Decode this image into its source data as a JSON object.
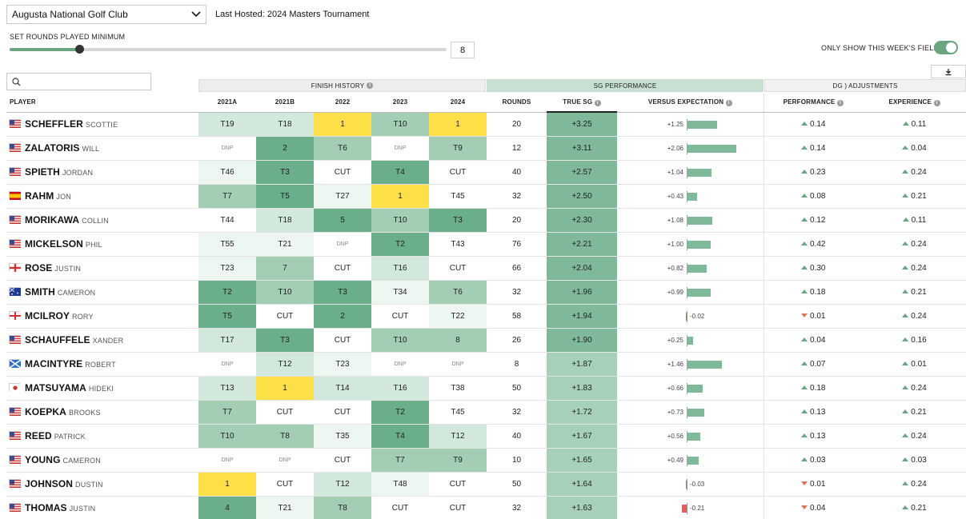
{
  "controls": {
    "course_select": "Augusta National Golf Club",
    "last_hosted_label": "Last Hosted:",
    "last_hosted_value": "2024 Masters Tournament",
    "rounds_min_label": "SET ROUNDS PLAYED MINIMUM",
    "rounds_min_value": "8",
    "rounds_min_fraction": 0.16,
    "field_toggle_label": "ONLY SHOW THIS WEEK'S FIELD",
    "field_toggle_on": true,
    "search_placeholder": ""
  },
  "group_headers": {
    "finish_history": "FINISH HISTORY",
    "sg_performance": "SG PERFORMANCE",
    "dg_adjustments": "DG ) ADJUSTMENTS"
  },
  "columns": {
    "player": "PLAYER",
    "y2021a": "2021A",
    "y2021b": "2021B",
    "y2022": "2022",
    "y2023": "2023",
    "y2024": "2024",
    "rounds": "ROUNDS",
    "true_sg": "TRUE SG",
    "versus_expectation": "VERSUS EXPECTATION",
    "performance": "PERFORMANCE",
    "experience": "EXPERIENCE"
  },
  "colors": {
    "win_yellow": "#fde047",
    "dark_green": "#6aae8a",
    "mid_green": "#a3ceb4",
    "light_green": "#d3e8dc",
    "pale_green": "#eef6f1",
    "true_sg_bg": "#7fb99a",
    "true_sg_bg_light": "#a6d0b8",
    "bar_positive": "#7fb99a",
    "bar_negative": "#e06060",
    "arrow_up": "#6aa581",
    "arrow_down": "#e0705a"
  },
  "players": [
    {
      "last": "SCHEFFLER",
      "first": "SCOTTIE",
      "flag": "us",
      "finishes": [
        "T19",
        "T18",
        "1",
        "T10",
        "1"
      ],
      "rounds": "20",
      "true_sg": "+3.25",
      "vexp": "+1.25",
      "vexp_val": 1.25,
      "perf_dir": "up",
      "perf": "0.14",
      "exp_dir": "up",
      "exp": "0.11"
    },
    {
      "last": "ZALATORIS",
      "first": "WILL",
      "flag": "us",
      "finishes": [
        "DNP",
        "2",
        "T6",
        "DNP",
        "T9"
      ],
      "rounds": "12",
      "true_sg": "+3.11",
      "vexp": "+2.06",
      "vexp_val": 2.06,
      "perf_dir": "up",
      "perf": "0.14",
      "exp_dir": "up",
      "exp": "0.04"
    },
    {
      "last": "SPIETH",
      "first": "JORDAN",
      "flag": "us",
      "finishes": [
        "T46",
        "T3",
        "CUT",
        "T4",
        "CUT"
      ],
      "rounds": "40",
      "true_sg": "+2.57",
      "vexp": "+1.04",
      "vexp_val": 1.04,
      "perf_dir": "up",
      "perf": "0.23",
      "exp_dir": "up",
      "exp": "0.24"
    },
    {
      "last": "RAHM",
      "first": "JON",
      "flag": "es",
      "finishes": [
        "T7",
        "T5",
        "T27",
        "1",
        "T45"
      ],
      "rounds": "32",
      "true_sg": "+2.50",
      "vexp": "+0.43",
      "vexp_val": 0.43,
      "perf_dir": "up",
      "perf": "0.08",
      "exp_dir": "up",
      "exp": "0.21"
    },
    {
      "last": "MORIKAWA",
      "first": "COLLIN",
      "flag": "us",
      "finishes": [
        "T44",
        "T18",
        "5",
        "T10",
        "T3"
      ],
      "rounds": "20",
      "true_sg": "+2.30",
      "vexp": "+1.08",
      "vexp_val": 1.08,
      "perf_dir": "up",
      "perf": "0.12",
      "exp_dir": "up",
      "exp": "0.11"
    },
    {
      "last": "MICKELSON",
      "first": "PHIL",
      "flag": "us",
      "finishes": [
        "T55",
        "T21",
        "DNP",
        "T2",
        "T43"
      ],
      "rounds": "76",
      "true_sg": "+2.21",
      "vexp": "+1.00",
      "vexp_val": 1.0,
      "perf_dir": "up",
      "perf": "0.42",
      "exp_dir": "up",
      "exp": "0.24"
    },
    {
      "last": "ROSE",
      "first": "JUSTIN",
      "flag": "en",
      "finishes": [
        "T23",
        "7",
        "CUT",
        "T16",
        "CUT"
      ],
      "rounds": "66",
      "true_sg": "+2.04",
      "vexp": "+0.82",
      "vexp_val": 0.82,
      "perf_dir": "up",
      "perf": "0.30",
      "exp_dir": "up",
      "exp": "0.24"
    },
    {
      "last": "SMITH",
      "first": "CAMERON",
      "flag": "au",
      "finishes": [
        "T2",
        "T10",
        "T3",
        "T34",
        "T6"
      ],
      "rounds": "32",
      "true_sg": "+1.96",
      "vexp": "+0.99",
      "vexp_val": 0.99,
      "perf_dir": "up",
      "perf": "0.18",
      "exp_dir": "up",
      "exp": "0.21"
    },
    {
      "last": "MCILROY",
      "first": "RORY",
      "flag": "ni",
      "finishes": [
        "T5",
        "CUT",
        "2",
        "CUT",
        "T22"
      ],
      "rounds": "58",
      "true_sg": "+1.94",
      "vexp": "-0.02",
      "vexp_val": -0.02,
      "perf_dir": "down",
      "perf": "0.01",
      "exp_dir": "up",
      "exp": "0.24"
    },
    {
      "last": "SCHAUFFELE",
      "first": "XANDER",
      "flag": "us",
      "finishes": [
        "T17",
        "T3",
        "CUT",
        "T10",
        "8"
      ],
      "rounds": "26",
      "true_sg": "+1.90",
      "vexp": "+0.25",
      "vexp_val": 0.25,
      "perf_dir": "up",
      "perf": "0.04",
      "exp_dir": "up",
      "exp": "0.16"
    },
    {
      "last": "MACINTYRE",
      "first": "ROBERT",
      "flag": "sc",
      "finishes": [
        "DNP",
        "T12",
        "T23",
        "DNP",
        "DNP"
      ],
      "rounds": "8",
      "true_sg": "+1.87",
      "vexp": "+1.46",
      "vexp_val": 1.46,
      "perf_dir": "up",
      "perf": "0.07",
      "exp_dir": "up",
      "exp": "0.01"
    },
    {
      "last": "MATSUYAMA",
      "first": "HIDEKI",
      "flag": "jp",
      "finishes": [
        "T13",
        "1",
        "T14",
        "T16",
        "T38"
      ],
      "rounds": "50",
      "true_sg": "+1.83",
      "vexp": "+0.66",
      "vexp_val": 0.66,
      "perf_dir": "up",
      "perf": "0.18",
      "exp_dir": "up",
      "exp": "0.24"
    },
    {
      "last": "KOEPKA",
      "first": "BROOKS",
      "flag": "us",
      "finishes": [
        "T7",
        "CUT",
        "CUT",
        "T2",
        "T45"
      ],
      "rounds": "32",
      "true_sg": "+1.72",
      "vexp": "+0.73",
      "vexp_val": 0.73,
      "perf_dir": "up",
      "perf": "0.13",
      "exp_dir": "up",
      "exp": "0.21"
    },
    {
      "last": "REED",
      "first": "PATRICK",
      "flag": "us",
      "finishes": [
        "T10",
        "T8",
        "T35",
        "T4",
        "T12"
      ],
      "rounds": "40",
      "true_sg": "+1.67",
      "vexp": "+0.56",
      "vexp_val": 0.56,
      "perf_dir": "up",
      "perf": "0.13",
      "exp_dir": "up",
      "exp": "0.24"
    },
    {
      "last": "YOUNG",
      "first": "CAMERON",
      "flag": "us",
      "finishes": [
        "DNP",
        "DNP",
        "CUT",
        "T7",
        "T9"
      ],
      "rounds": "10",
      "true_sg": "+1.65",
      "vexp": "+0.49",
      "vexp_val": 0.49,
      "perf_dir": "up",
      "perf": "0.03",
      "exp_dir": "up",
      "exp": "0.03"
    },
    {
      "last": "JOHNSON",
      "first": "DUSTIN",
      "flag": "us",
      "finishes": [
        "1",
        "CUT",
        "T12",
        "T48",
        "CUT"
      ],
      "rounds": "50",
      "true_sg": "+1.64",
      "vexp": "-0.03",
      "vexp_val": -0.03,
      "perf_dir": "down",
      "perf": "0.01",
      "exp_dir": "up",
      "exp": "0.24"
    },
    {
      "last": "THOMAS",
      "first": "JUSTIN",
      "flag": "us",
      "finishes": [
        "4",
        "T21",
        "T8",
        "CUT",
        "CUT"
      ],
      "rounds": "32",
      "true_sg": "+1.63",
      "vexp": "-0.21",
      "vexp_val": -0.21,
      "perf_dir": "down",
      "perf": "0.04",
      "exp_dir": "up",
      "exp": "0.21"
    }
  ]
}
